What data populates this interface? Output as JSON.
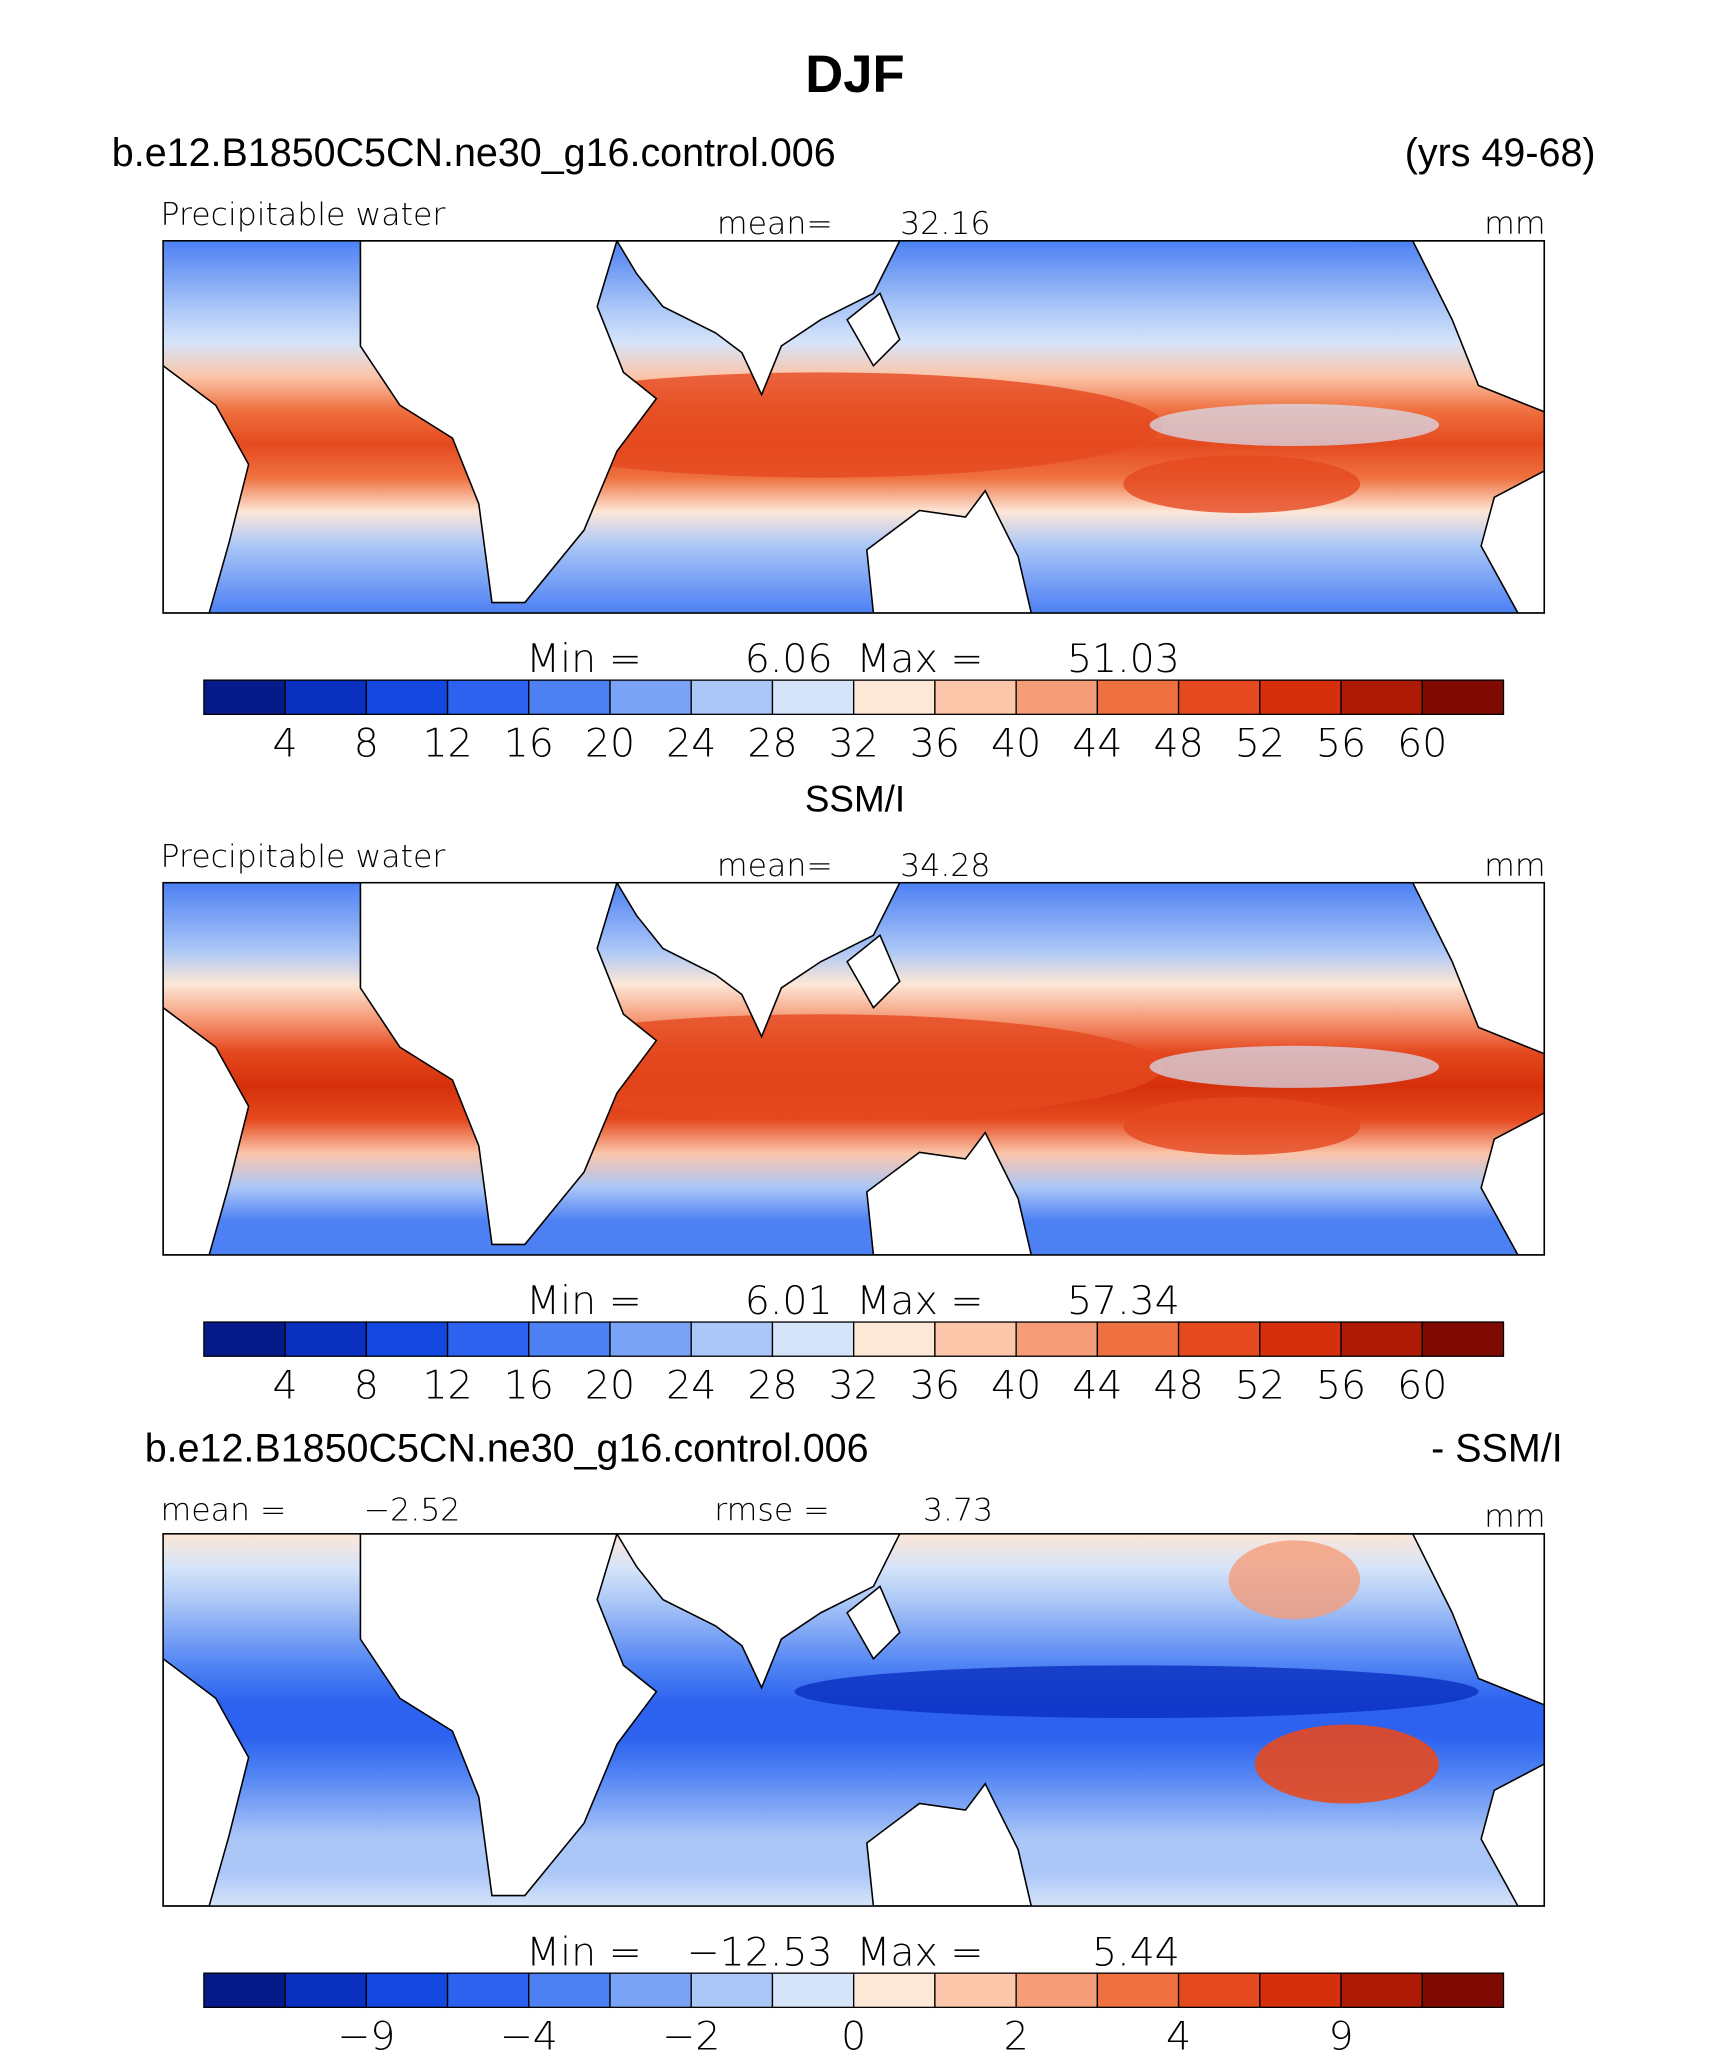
{
  "header": {
    "title": "DJF",
    "case": "b.e12.B1850C5CN.ne30_g16.control.006",
    "years": "(yrs 49-68)"
  },
  "subtitle": "SSM/I",
  "diff_header": {
    "case": "b.e12.B1850C5CN.ne30_g16.control.006",
    "suffix": "- SSM/I"
  },
  "panels": [
    {
      "variable": "Precipitable water",
      "stat_label": "mean=",
      "stat_value": "32.16",
      "units": "mm",
      "min_label": "Min =",
      "min": "6.06",
      "max_label": "Max =",
      "max": "51.03",
      "colorbar": {
        "colors": [
          "#061a8a",
          "#0a30bf",
          "#1447df",
          "#2c62ef",
          "#4c80f3",
          "#7ba3f5",
          "#abc7f7",
          "#d5e4f9",
          "#fde7d7",
          "#fbc6aa",
          "#f59c79",
          "#ef7140",
          "#e5491f",
          "#d5300b",
          "#ad1b06",
          "#7e0a02"
        ],
        "labels": [
          "4",
          "8",
          "12",
          "16",
          "20",
          "24",
          "28",
          "32",
          "36",
          "40",
          "44",
          "48",
          "52",
          "56",
          "60"
        ]
      }
    },
    {
      "variable": "Precipitable water",
      "stat_label": "mean=",
      "stat_value": "34.28",
      "units": "mm",
      "min_label": "Min =",
      "min": "6.01",
      "max_label": "Max =",
      "max": "57.34",
      "colorbar": {
        "colors": [
          "#061a8a",
          "#0a30bf",
          "#1447df",
          "#2c62ef",
          "#4c80f3",
          "#7ba3f5",
          "#abc7f7",
          "#d5e4f9",
          "#fde7d7",
          "#fbc6aa",
          "#f59c79",
          "#ef7140",
          "#e5491f",
          "#d5300b",
          "#ad1b06",
          "#7e0a02"
        ],
        "labels": [
          "4",
          "8",
          "12",
          "16",
          "20",
          "24",
          "28",
          "32",
          "36",
          "40",
          "44",
          "48",
          "52",
          "56",
          "60"
        ]
      }
    },
    {
      "stat_label": "mean =",
      "stat_value": "−2.52",
      "stat2_label": "rmse =",
      "stat2_value": "3.73",
      "units": "mm",
      "min_label": "Min =",
      "min": "−12.53",
      "max_label": "Max =",
      "max": "5.44",
      "colorbar": {
        "colors": [
          "#061a8a",
          "#0a30bf",
          "#1447df",
          "#2c62ef",
          "#4c80f3",
          "#7ba3f5",
          "#abc7f7",
          "#d5e4f9",
          "#fde7d7",
          "#fbc6aa",
          "#f59c79",
          "#ef7140",
          "#e5491f",
          "#d5300b",
          "#ad1b06",
          "#7e0a02"
        ],
        "labels": [
          null,
          "−9",
          null,
          "−4",
          null,
          "−2",
          null,
          "0",
          null,
          "2",
          null,
          "4",
          null,
          "9",
          null
        ]
      }
    }
  ]
}
